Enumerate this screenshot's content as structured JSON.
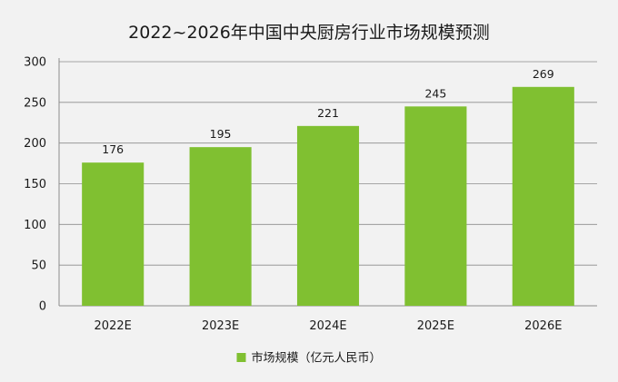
{
  "chart_data": {
    "type": "bar",
    "title": "2022~2026年中国中央厨房行业市场规模预测",
    "xlabel": "",
    "ylabel": "",
    "categories": [
      "2022E",
      "2023E",
      "2024E",
      "2025E",
      "2026E"
    ],
    "series": [
      {
        "name": "市场规模（亿元人民币）",
        "values": [
          176,
          195,
          221,
          245,
          269
        ],
        "color": "#80c031"
      }
    ],
    "ylim": [
      0,
      300
    ],
    "yticks": [
      0,
      50,
      100,
      150,
      200,
      250,
      300
    ],
    "grid": true,
    "legend_position": "bottom-center",
    "data_labels": true
  }
}
